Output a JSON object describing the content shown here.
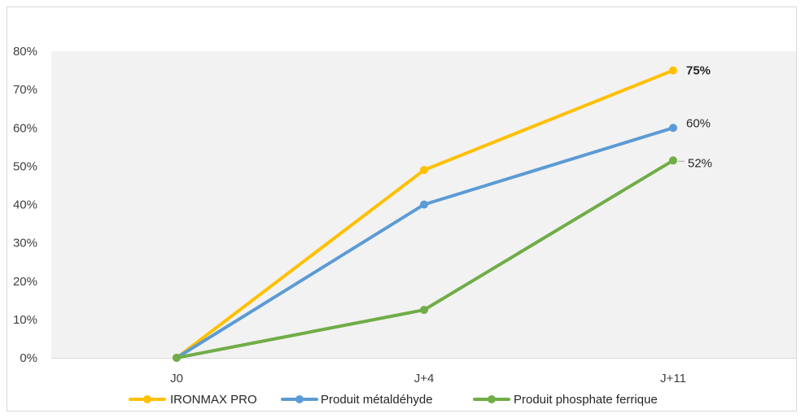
{
  "chart_data": {
    "type": "line",
    "categories": [
      "J0",
      "J+4",
      "J+11"
    ],
    "ylim": [
      0,
      80
    ],
    "y_tick_values": [
      0,
      10,
      20,
      30,
      40,
      50,
      60,
      70,
      80
    ],
    "y_tick_labels": [
      "0%",
      "10%",
      "20%",
      "30%",
      "40%",
      "50%",
      "60%",
      "70%",
      "80%"
    ],
    "grid": false,
    "plot_background": "#f2f2f2",
    "legend_position": "bottom",
    "series": [
      {
        "name": "IRONMAX PRO",
        "values": [
          0,
          49,
          75
        ],
        "color": "#ffc000",
        "end_label": "75%",
        "end_label_bold": true
      },
      {
        "name": "Produit métaldéhyde",
        "values": [
          0,
          40,
          60
        ],
        "color": "#5b9bd5",
        "end_label": "60%",
        "end_label_bold": false
      },
      {
        "name": "Produit phosphate ferrique",
        "values": [
          0,
          12.5,
          51.5
        ],
        "color": "#70ad47",
        "end_label": "52%",
        "end_label_bold": false
      }
    ]
  }
}
